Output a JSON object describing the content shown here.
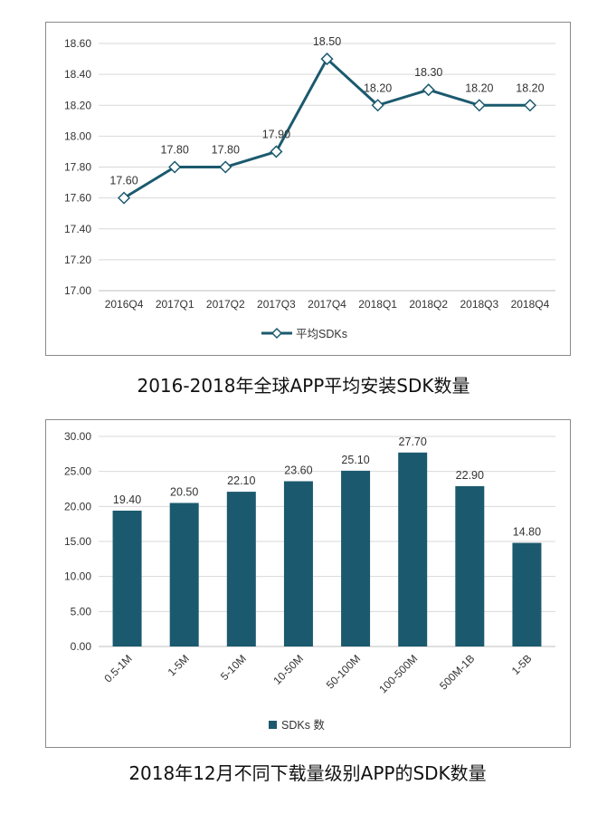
{
  "charts": [
    {
      "caption": "2016-2018年全球APP平均安装SDK数量",
      "chart_data": {
        "type": "line",
        "categories": [
          "2016Q4",
          "2017Q1",
          "2017Q2",
          "2017Q3",
          "2017Q4",
          "2018Q1",
          "2018Q2",
          "2018Q3",
          "2018Q4"
        ],
        "series": [
          {
            "name": "平均SDKs",
            "values": [
              17.6,
              17.8,
              17.8,
              17.9,
              18.5,
              18.2,
              18.3,
              18.2,
              18.2
            ]
          }
        ],
        "value_labels": [
          "17.60",
          "17.80",
          "17.80",
          "17.90",
          "18.50",
          "18.20",
          "18.30",
          "18.20",
          "18.20"
        ],
        "ylim": [
          17.0,
          18.6
        ],
        "yticks": [
          "17.00",
          "17.20",
          "17.40",
          "17.60",
          "17.80",
          "18.00",
          "18.20",
          "18.40",
          "18.60"
        ],
        "grid": true,
        "legend": "bottom",
        "color": "#1b5a6e"
      }
    },
    {
      "caption": "2018年12月不同下载量级别APP的SDK数量",
      "chart_data": {
        "type": "bar",
        "categories": [
          "0.5-1M",
          "1-5M",
          "5-10M",
          "10-50M",
          "50-100M",
          "100-500M",
          "500M-1B",
          "1-5B"
        ],
        "series": [
          {
            "name": "SDKs 数",
            "values": [
              19.4,
              20.5,
              22.1,
              23.6,
              25.1,
              27.7,
              22.9,
              14.8
            ]
          }
        ],
        "value_labels": [
          "19.40",
          "20.50",
          "22.10",
          "23.60",
          "25.10",
          "27.70",
          "22.90",
          "14.80"
        ],
        "ylim": [
          0,
          30
        ],
        "yticks": [
          "0.00",
          "5.00",
          "10.00",
          "15.00",
          "20.00",
          "25.00",
          "30.00"
        ],
        "grid": true,
        "legend": "bottom",
        "color": "#1b5a6e"
      }
    }
  ]
}
